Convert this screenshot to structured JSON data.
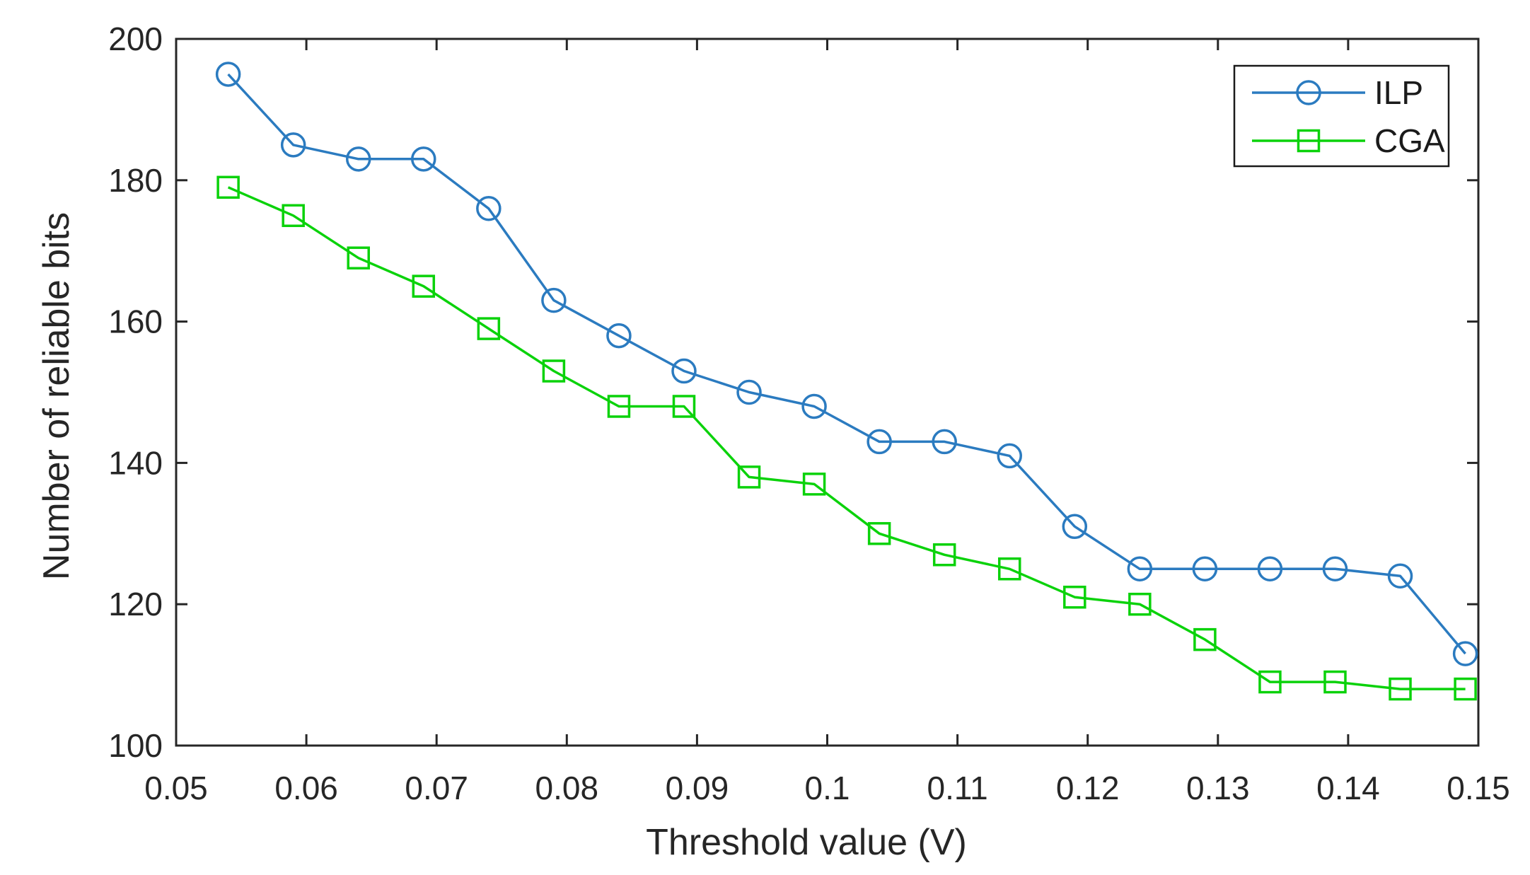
{
  "chart_data": {
    "type": "line",
    "title": "",
    "xlabel": "Threshold value (V)",
    "ylabel": "Number of reliable bits",
    "xlim": [
      0.05,
      0.15
    ],
    "ylim": [
      100,
      200
    ],
    "grid": false,
    "legend_position": "top-right",
    "xticks": {
      "values": [
        0.05,
        0.06,
        0.07,
        0.08,
        0.09,
        0.1,
        0.11,
        0.12,
        0.13,
        0.14,
        0.15
      ],
      "labels": [
        "0.05",
        "0.06",
        "0.07",
        "0.08",
        "0.09",
        "0.1",
        "0.11",
        "0.12",
        "0.13",
        "0.14",
        "0.15"
      ]
    },
    "yticks": {
      "values": [
        100,
        120,
        140,
        160,
        180,
        200
      ],
      "labels": [
        "100",
        "120",
        "140",
        "160",
        "180",
        "200"
      ]
    },
    "x": [
      0.054,
      0.059,
      0.064,
      0.069,
      0.074,
      0.079,
      0.084,
      0.089,
      0.094,
      0.099,
      0.104,
      0.109,
      0.114,
      0.119,
      0.124,
      0.129,
      0.134,
      0.139,
      0.144,
      0.149
    ],
    "series": [
      {
        "name": "ILP",
        "marker": "circle",
        "color": "#2b7bc0",
        "values": [
          195,
          185,
          183,
          183,
          176,
          163,
          158,
          153,
          150,
          148,
          143,
          143,
          141,
          131,
          125,
          125,
          125,
          125,
          124,
          113
        ]
      },
      {
        "name": "CGA",
        "marker": "square",
        "color": "#0bd20b",
        "values": [
          179,
          175,
          169,
          165,
          159,
          153,
          148,
          148,
          138,
          137,
          130,
          127,
          125,
          121,
          120,
          115,
          109,
          109,
          108,
          108
        ]
      }
    ]
  },
  "colors": {
    "axis": "#262626",
    "text": "#262626",
    "legend_border": "#1a1a1a",
    "legend_text": "#1a1a1a",
    "background": "#ffffff",
    "ilp": "#2b7bc0",
    "cga": "#0bd20b"
  }
}
